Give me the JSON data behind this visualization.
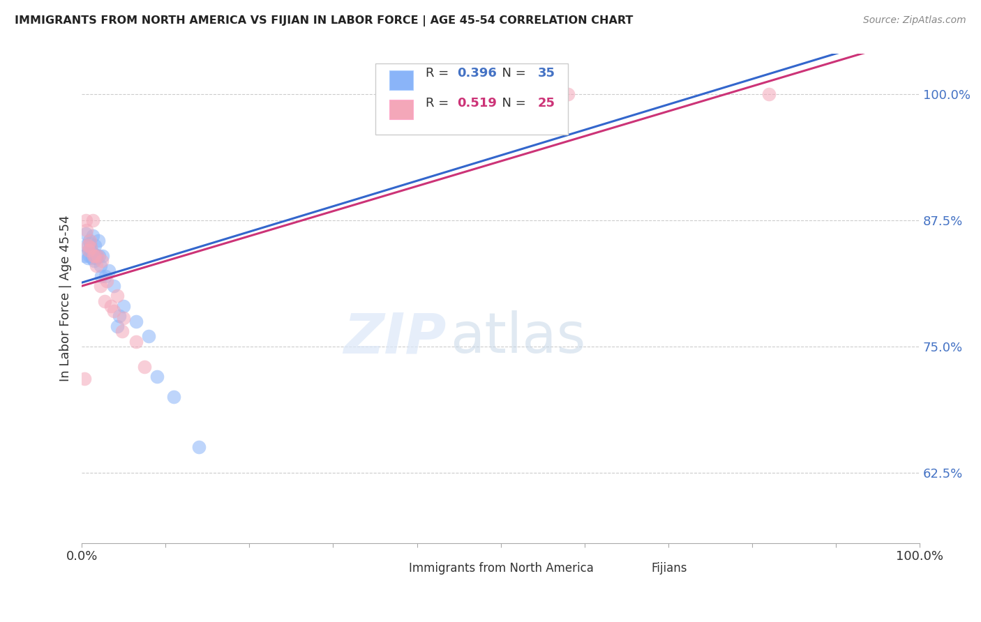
{
  "title": "IMMIGRANTS FROM NORTH AMERICA VS FIJIAN IN LABOR FORCE | AGE 45-54 CORRELATION CHART",
  "source": "Source: ZipAtlas.com",
  "ylabel": "In Labor Force | Age 45-54",
  "ytick_labels": [
    "62.5%",
    "75.0%",
    "87.5%",
    "100.0%"
  ],
  "ytick_values": [
    0.625,
    0.75,
    0.875,
    1.0
  ],
  "xlim": [
    0.0,
    1.0
  ],
  "ylim": [
    0.555,
    1.04
  ],
  "legend_blue_r": "0.396",
  "legend_blue_n": "35",
  "legend_pink_r": "0.519",
  "legend_pink_n": "25",
  "blue_scatter_color": "#8ab4f8",
  "pink_scatter_color": "#f4a7b9",
  "blue_line_color": "#3366cc",
  "pink_line_color": "#cc3377",
  "watermark_zip": "ZIP",
  "watermark_atlas": "atlas",
  "north_america_x": [
    0.003,
    0.005,
    0.005,
    0.007,
    0.008,
    0.009,
    0.009,
    0.01,
    0.011,
    0.012,
    0.012,
    0.013,
    0.014,
    0.015,
    0.016,
    0.017,
    0.018,
    0.02,
    0.021,
    0.022,
    0.023,
    0.025,
    0.028,
    0.032,
    0.038,
    0.042,
    0.045,
    0.05,
    0.065,
    0.08,
    0.09,
    0.11,
    0.14,
    0.43,
    0.52
  ],
  "north_america_y": [
    0.84,
    0.862,
    0.85,
    0.838,
    0.845,
    0.855,
    0.84,
    0.852,
    0.848,
    0.838,
    0.843,
    0.86,
    0.842,
    0.835,
    0.85,
    0.838,
    0.84,
    0.855,
    0.84,
    0.83,
    0.82,
    0.84,
    0.82,
    0.825,
    0.81,
    0.77,
    0.78,
    0.79,
    0.775,
    0.76,
    0.72,
    0.7,
    0.65,
    1.0,
    1.0
  ],
  "fijian_x": [
    0.003,
    0.005,
    0.006,
    0.007,
    0.008,
    0.01,
    0.011,
    0.013,
    0.014,
    0.016,
    0.017,
    0.019,
    0.022,
    0.024,
    0.027,
    0.03,
    0.035,
    0.038,
    0.042,
    0.048,
    0.05,
    0.065,
    0.075,
    0.58,
    0.82
  ],
  "fijian_y": [
    0.718,
    0.875,
    0.865,
    0.85,
    0.845,
    0.855,
    0.848,
    0.875,
    0.84,
    0.84,
    0.83,
    0.84,
    0.81,
    0.835,
    0.795,
    0.815,
    0.79,
    0.785,
    0.8,
    0.765,
    0.778,
    0.755,
    0.73,
    1.0,
    1.0
  ]
}
